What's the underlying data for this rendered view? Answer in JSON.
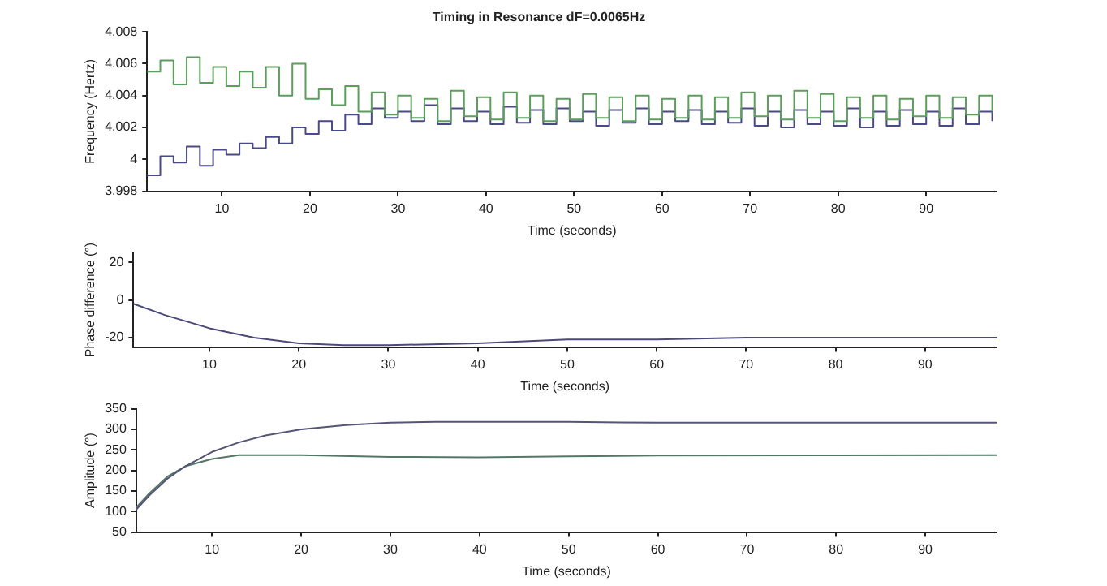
{
  "chart_data": [
    {
      "type": "step",
      "title": "Timing in Resonance dF=0.0065Hz",
      "xlabel": "Time (seconds)",
      "ylabel": "Frequency (Hertz)",
      "xlim": [
        1.5,
        98
      ],
      "xticks": [
        10,
        20,
        30,
        40,
        50,
        60,
        70,
        80,
        90
      ],
      "ylim": [
        3.998,
        4.008
      ],
      "yticks": [
        3.998,
        4,
        4.002,
        4.004,
        4.006,
        4.008
      ],
      "grid": false,
      "legend": false,
      "x": [
        1.5,
        3,
        4.5,
        6,
        7.5,
        9,
        10.5,
        12,
        13.5,
        15,
        16.5,
        18,
        19.5,
        21,
        22.5,
        24,
        25.5,
        27,
        28.5,
        30,
        31.5,
        33,
        34.5,
        36,
        37.5,
        39,
        40.5,
        42,
        43.5,
        45,
        46.5,
        48,
        49.5,
        51,
        52.5,
        54,
        55.5,
        57,
        58.5,
        60,
        61.5,
        63,
        64.5,
        66,
        67.5,
        69,
        70.5,
        72,
        73.5,
        75,
        76.5,
        78,
        79.5,
        81,
        82.5,
        84,
        85.5,
        87,
        88.5,
        90,
        91.5,
        93,
        94.5,
        96,
        97.5
      ],
      "series": [
        {
          "color": "#5c9e5c",
          "values": [
            4.0055,
            4.0062,
            4.0047,
            4.0064,
            4.0048,
            4.0058,
            4.0046,
            4.0055,
            4.0045,
            4.0058,
            4.004,
            4.006,
            4.0038,
            4.0044,
            4.0034,
            4.0046,
            4.003,
            4.0042,
            4.0028,
            4.004,
            4.0026,
            4.0038,
            4.0024,
            4.0043,
            4.0027,
            4.0039,
            4.0025,
            4.0042,
            4.0026,
            4.004,
            4.0024,
            4.0038,
            4.0025,
            4.0041,
            4.0026,
            4.0039,
            4.0024,
            4.004,
            4.0025,
            4.0038,
            4.0026,
            4.004,
            4.0025,
            4.0039,
            4.0026,
            4.0042,
            4.0027,
            4.004,
            4.0025,
            4.0043,
            4.0026,
            4.0041,
            4.0024,
            4.0039,
            4.0026,
            4.004,
            4.0025,
            4.0038,
            4.0027,
            4.004,
            4.0026,
            4.0039,
            4.0028,
            4.004,
            4.003
          ]
        },
        {
          "color": "#4a4a86",
          "values": [
            3.999,
            4.0002,
            3.9998,
            4.0008,
            3.9996,
            4.0006,
            4.0003,
            4.001,
            4.0007,
            4.0014,
            4.001,
            4.002,
            4.0016,
            4.0024,
            4.0018,
            4.0028,
            4.0022,
            4.0032,
            4.0026,
            4.003,
            4.0024,
            4.0034,
            4.0022,
            4.0032,
            4.0024,
            4.003,
            4.0022,
            4.0033,
            4.0023,
            4.0031,
            4.0022,
            4.0032,
            4.0024,
            4.003,
            4.0021,
            4.0031,
            4.0023,
            4.0032,
            4.0022,
            4.003,
            4.0024,
            4.0031,
            4.0022,
            4.003,
            4.0023,
            4.0032,
            4.0021,
            4.003,
            4.002,
            4.0031,
            4.0022,
            4.003,
            4.0021,
            4.0032,
            4.002,
            4.003,
            4.0021,
            4.0031,
            4.0022,
            4.003,
            4.0021,
            4.0032,
            4.0022,
            4.003,
            4.0024
          ]
        }
      ]
    },
    {
      "type": "line",
      "xlabel": "Time (seconds)",
      "ylabel": "Phase difference (°)",
      "xlim": [
        1.5,
        98
      ],
      "xticks": [
        10,
        20,
        30,
        40,
        50,
        60,
        70,
        80,
        90
      ],
      "ylim": [
        -25,
        25
      ],
      "yticks": [
        -20,
        0,
        20
      ],
      "grid": false,
      "legend": false,
      "x": [
        1.5,
        5,
        10,
        15,
        20,
        25,
        30,
        40,
        50,
        60,
        70,
        80,
        90,
        98
      ],
      "series": [
        {
          "color": "#4a4a7a",
          "values": [
            -2,
            -8,
            -15,
            -20,
            -23,
            -24,
            -24,
            -23,
            -21,
            -21,
            -20,
            -20,
            -20,
            -20
          ]
        }
      ]
    },
    {
      "type": "line",
      "xlabel": "Time (seconds)",
      "ylabel": "Amplitude (°)",
      "xlim": [
        1.5,
        98
      ],
      "xticks": [
        10,
        20,
        30,
        40,
        50,
        60,
        70,
        80,
        90
      ],
      "ylim": [
        50,
        350
      ],
      "yticks": [
        50,
        100,
        150,
        200,
        250,
        300,
        350
      ],
      "grid": false,
      "legend": false,
      "series": [
        {
          "color": "#555577",
          "x": [
            1.5,
            3,
            5,
            7,
            10,
            13,
            16,
            20,
            25,
            30,
            35,
            50,
            60,
            98
          ],
          "values": [
            105,
            140,
            180,
            210,
            245,
            268,
            285,
            300,
            310,
            316,
            318,
            318,
            316,
            316
          ]
        },
        {
          "color": "#557766",
          "x": [
            1.5,
            3,
            5,
            7,
            10,
            13,
            20,
            30,
            40,
            50,
            60,
            98
          ],
          "values": [
            110,
            145,
            185,
            210,
            228,
            237,
            237,
            233,
            232,
            234,
            236,
            237
          ]
        }
      ]
    }
  ]
}
